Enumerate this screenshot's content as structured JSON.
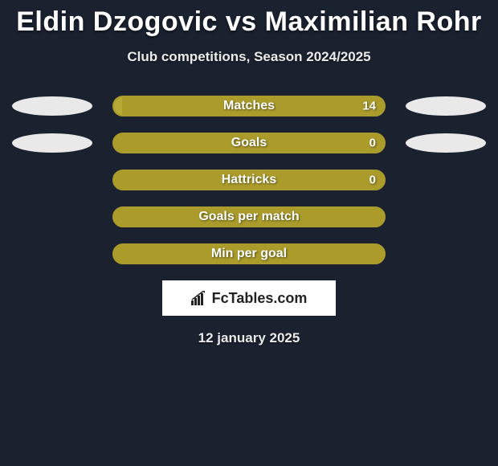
{
  "title": "Eldin Dzogovic vs Maximilian Rohr",
  "subtitle": "Club competitions, Season 2024/2025",
  "date": "12 january 2025",
  "logo": {
    "text_prefix": "Fc",
    "text_suffix": "Tables.com",
    "box_bg": "#ffffff",
    "text_color": "#222222",
    "icon_color": "#222222"
  },
  "colors": {
    "page_bg": "#1a2230",
    "ellipse_bg": "#e9e9e9",
    "bar_border": "#aa9b2b",
    "bar_fill_primary": "#aa9b2b",
    "bar_fill_secondary": "#b7a936",
    "text_white": "#ffffff"
  },
  "stats": [
    {
      "label": "Matches",
      "value": "14",
      "left_pct": 3,
      "left_color": "#b7a936",
      "right_color": "#aa9b2b",
      "show_value": true,
      "show_left_ellipse": true,
      "show_right_ellipse": true
    },
    {
      "label": "Goals",
      "value": "0",
      "left_pct": 0,
      "left_color": "#aa9b2b",
      "right_color": "#aa9b2b",
      "show_value": true,
      "show_left_ellipse": true,
      "show_right_ellipse": true
    },
    {
      "label": "Hattricks",
      "value": "0",
      "left_pct": 0,
      "left_color": "#aa9b2b",
      "right_color": "#aa9b2b",
      "show_value": true,
      "show_left_ellipse": false,
      "show_right_ellipse": false
    },
    {
      "label": "Goals per match",
      "value": "",
      "left_pct": 0,
      "left_color": "#aa9b2b",
      "right_color": "#aa9b2b",
      "show_value": false,
      "show_left_ellipse": false,
      "show_right_ellipse": false
    },
    {
      "label": "Min per goal",
      "value": "",
      "left_pct": 0,
      "left_color": "#aa9b2b",
      "right_color": "#aa9b2b",
      "show_value": false,
      "show_left_ellipse": false,
      "show_right_ellipse": false
    }
  ]
}
